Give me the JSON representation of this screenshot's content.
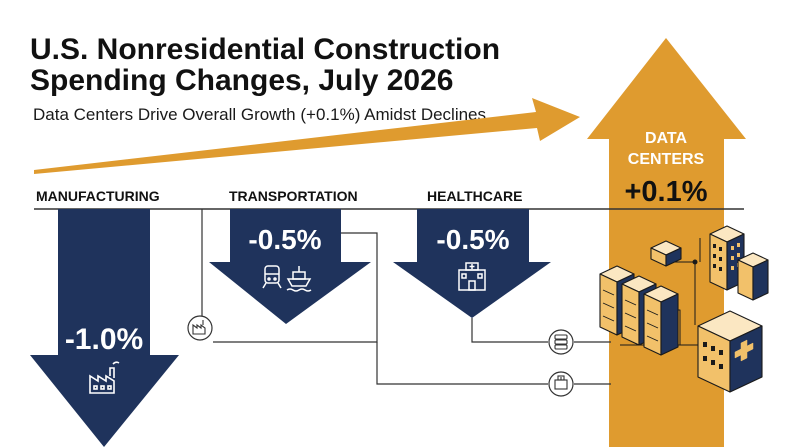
{
  "header": {
    "title": "U.S. Nonresidential Construction Spending Changes, July 2026",
    "subtitle": "Data Centers Drive Overall Growth (+0.1%) Amidst Declines"
  },
  "overall": {
    "label": "OVERALL GROWTH (+0.1%)",
    "value": 0.1
  },
  "sectors": [
    {
      "name": "MANUFACTURING",
      "change_label": "-1.0%",
      "change": -1.0,
      "icon": "factory-icon"
    },
    {
      "name": "TRANSPORTATION",
      "change_label": "-0.5%",
      "change": -0.5,
      "icon": "train-ship-icon"
    },
    {
      "name": "HEALTHCARE",
      "change_label": "-0.5%",
      "change": -0.5,
      "icon": "hospital-icon"
    },
    {
      "name_line1": "DATA",
      "name_line2": "CENTERS",
      "change_label": "+0.1%",
      "change": 0.1,
      "icon": "server-buildings-icon"
    }
  ],
  "colors": {
    "negative": "#1f335c",
    "positive": "#df9b2f",
    "text": "#111111",
    "connector": "#333333"
  }
}
